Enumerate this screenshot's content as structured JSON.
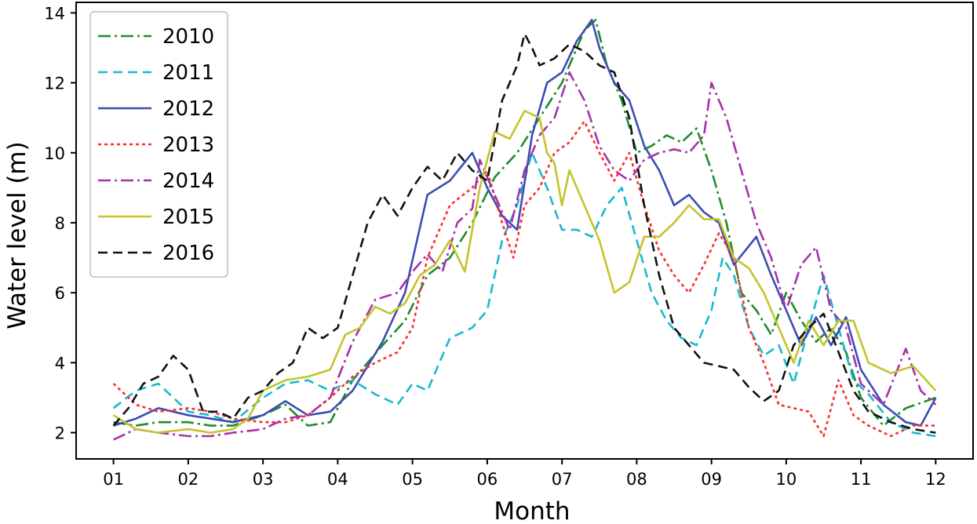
{
  "chart_data": {
    "type": "line",
    "title": "",
    "xlabel": "Month",
    "ylabel": "Water level (m)",
    "xlim": [
      0.5,
      12.5
    ],
    "ylim": [
      1.25,
      14.3
    ],
    "x_ticks": [
      1,
      2,
      3,
      4,
      5,
      6,
      7,
      8,
      9,
      10,
      11,
      12
    ],
    "x_tick_labels": [
      "01",
      "02",
      "03",
      "04",
      "05",
      "06",
      "07",
      "08",
      "09",
      "10",
      "11",
      "12"
    ],
    "y_ticks": [
      2,
      4,
      6,
      8,
      10,
      12,
      14
    ],
    "y_tick_labels": [
      "2",
      "4",
      "6",
      "8",
      "10",
      "12",
      "14"
    ],
    "grid": false,
    "legend_position": "top-left",
    "series": [
      {
        "name": "2010",
        "color": "#1e8a2e",
        "dash": "16,5,3,5",
        "x": [
          1.0,
          1.3,
          1.6,
          2.0,
          2.3,
          2.6,
          3.0,
          3.3,
          3.6,
          3.9,
          4.2,
          4.6,
          4.9,
          5.2,
          5.5,
          5.8,
          6.1,
          6.4,
          6.7,
          7.0,
          7.3,
          7.45,
          7.6,
          7.8,
          8.0,
          8.2,
          8.4,
          8.6,
          8.8,
          9.0,
          9.2,
          9.4,
          9.6,
          9.8,
          10.0,
          10.2,
          10.4,
          10.6,
          10.8,
          11.0,
          11.3,
          11.6,
          12.0
        ],
        "y": [
          2.3,
          2.2,
          2.3,
          2.3,
          2.2,
          2.2,
          2.5,
          2.8,
          2.2,
          2.3,
          3.5,
          4.5,
          5.2,
          6.5,
          7.0,
          8.0,
          9.3,
          10.0,
          11.0,
          12.0,
          13.5,
          13.8,
          12.5,
          11.5,
          10.0,
          10.2,
          10.5,
          10.3,
          10.7,
          9.5,
          8.0,
          6.0,
          5.5,
          4.8,
          6.0,
          5.2,
          4.6,
          5.0,
          4.3,
          3.0,
          2.2,
          2.7,
          3.0
        ]
      },
      {
        "name": "2011",
        "color": "#1ab8cf",
        "dash": "12,7",
        "x": [
          1.0,
          1.3,
          1.6,
          2.0,
          2.3,
          2.6,
          3.0,
          3.3,
          3.6,
          3.9,
          4.2,
          4.5,
          4.8,
          5.0,
          5.2,
          5.5,
          5.8,
          6.0,
          6.2,
          6.4,
          6.6,
          6.8,
          7.0,
          7.2,
          7.4,
          7.6,
          7.8,
          8.0,
          8.2,
          8.4,
          8.6,
          8.8,
          9.0,
          9.15,
          9.3,
          9.5,
          9.7,
          9.9,
          10.1,
          10.3,
          10.5,
          10.7,
          10.9,
          11.1,
          11.4,
          11.7,
          12.0
        ],
        "y": [
          2.7,
          3.2,
          3.4,
          2.6,
          2.5,
          2.3,
          3.0,
          3.4,
          3.5,
          3.2,
          3.5,
          3.1,
          2.8,
          3.4,
          3.2,
          4.7,
          5.0,
          5.5,
          7.5,
          8.5,
          10.0,
          9.0,
          7.8,
          7.8,
          7.6,
          8.5,
          9.0,
          7.5,
          6.0,
          5.2,
          4.7,
          4.5,
          5.5,
          7.0,
          6.5,
          5.0,
          4.2,
          4.5,
          3.4,
          5.0,
          6.5,
          5.0,
          3.5,
          3.1,
          2.3,
          2.0,
          1.9
        ]
      },
      {
        "name": "2012",
        "color": "#3c4db2",
        "dash": "",
        "x": [
          1.0,
          1.3,
          1.6,
          2.0,
          2.3,
          2.6,
          3.0,
          3.3,
          3.6,
          3.9,
          4.2,
          4.6,
          4.9,
          5.2,
          5.5,
          5.8,
          6.0,
          6.2,
          6.4,
          6.6,
          6.8,
          7.0,
          7.2,
          7.4,
          7.5,
          7.7,
          7.9,
          8.1,
          8.3,
          8.5,
          8.7,
          8.9,
          9.1,
          9.3,
          9.6,
          9.8,
          10.0,
          10.2,
          10.4,
          10.6,
          10.8,
          11.0,
          11.3,
          11.6,
          11.8,
          12.0
        ],
        "y": [
          2.2,
          2.4,
          2.7,
          2.5,
          2.4,
          2.3,
          2.5,
          2.9,
          2.5,
          2.6,
          3.2,
          4.6,
          6.0,
          8.8,
          9.2,
          10.0,
          9.0,
          8.2,
          7.8,
          10.5,
          12.0,
          12.3,
          13.2,
          13.8,
          13.0,
          12.0,
          11.5,
          10.2,
          9.5,
          8.5,
          8.8,
          8.3,
          8.0,
          6.8,
          7.6,
          6.5,
          5.5,
          4.5,
          5.3,
          4.5,
          5.3,
          3.8,
          2.8,
          2.3,
          2.2,
          3.0
        ]
      },
      {
        "name": "2013",
        "color": "#ff2d2d",
        "dash": "4,4",
        "x": [
          1.0,
          1.3,
          1.6,
          2.0,
          2.3,
          2.6,
          3.0,
          3.3,
          3.6,
          3.9,
          4.2,
          4.5,
          4.8,
          5.0,
          5.2,
          5.5,
          5.8,
          6.0,
          6.2,
          6.35,
          6.5,
          6.7,
          6.9,
          7.1,
          7.3,
          7.5,
          7.7,
          7.9,
          8.1,
          8.3,
          8.5,
          8.7,
          8.9,
          9.1,
          9.3,
          9.5,
          9.7,
          9.9,
          10.1,
          10.3,
          10.5,
          10.7,
          10.9,
          11.1,
          11.4,
          11.7,
          12.0
        ],
        "y": [
          3.4,
          2.8,
          2.6,
          2.7,
          2.6,
          2.4,
          2.3,
          2.3,
          2.5,
          3.0,
          3.6,
          4.0,
          4.3,
          5.0,
          7.0,
          8.5,
          9.0,
          9.5,
          8.0,
          7.0,
          8.5,
          9.0,
          10.0,
          10.3,
          10.9,
          10.0,
          9.2,
          10.0,
          8.5,
          7.2,
          6.5,
          6.0,
          6.8,
          7.7,
          7.0,
          5.0,
          4.0,
          2.8,
          2.7,
          2.6,
          1.9,
          3.5,
          2.5,
          2.2,
          1.9,
          2.2,
          2.2
        ]
      },
      {
        "name": "2014",
        "color": "#a632a8",
        "dash": "16,5,3,5",
        "x": [
          1.0,
          1.3,
          1.6,
          2.0,
          2.3,
          2.6,
          3.0,
          3.3,
          3.6,
          3.9,
          4.2,
          4.5,
          4.8,
          5.0,
          5.2,
          5.4,
          5.6,
          5.8,
          5.9,
          6.1,
          6.3,
          6.5,
          6.7,
          6.9,
          7.1,
          7.3,
          7.5,
          7.7,
          7.9,
          8.1,
          8.3,
          8.5,
          8.7,
          8.9,
          9.0,
          9.2,
          9.4,
          9.6,
          9.8,
          10.0,
          10.2,
          10.4,
          10.6,
          10.8,
          11.0,
          11.3,
          11.6,
          11.8,
          12.0
        ],
        "y": [
          1.8,
          2.1,
          2.0,
          1.9,
          1.9,
          2.0,
          2.1,
          2.4,
          2.5,
          3.0,
          4.6,
          5.8,
          6.0,
          6.6,
          7.1,
          6.6,
          8.0,
          8.4,
          9.8,
          8.8,
          7.8,
          9.5,
          10.5,
          11.0,
          12.3,
          11.5,
          10.2,
          9.5,
          9.2,
          9.8,
          10.0,
          10.1,
          10.0,
          10.5,
          12.0,
          11.0,
          9.5,
          8.0,
          7.0,
          5.5,
          6.8,
          7.3,
          5.5,
          5.0,
          3.4,
          2.8,
          4.4,
          3.2,
          2.8
        ]
      },
      {
        "name": "2015",
        "color": "#c4c42c",
        "dash": "",
        "x": [
          1.0,
          1.3,
          1.6,
          2.0,
          2.3,
          2.6,
          2.8,
          3.0,
          3.3,
          3.6,
          3.9,
          4.1,
          4.3,
          4.5,
          4.7,
          4.9,
          5.1,
          5.3,
          5.5,
          5.7,
          5.9,
          6.1,
          6.3,
          6.5,
          6.7,
          6.8,
          6.9,
          7.0,
          7.1,
          7.3,
          7.5,
          7.7,
          7.9,
          8.1,
          8.3,
          8.5,
          8.7,
          8.9,
          9.1,
          9.3,
          9.5,
          9.7,
          9.9,
          10.1,
          10.3,
          10.5,
          10.7,
          10.9,
          11.1,
          11.4,
          11.7,
          12.0
        ],
        "y": [
          2.5,
          2.1,
          2.0,
          2.1,
          2.0,
          2.1,
          2.4,
          3.2,
          3.5,
          3.6,
          3.8,
          4.8,
          5.0,
          5.6,
          5.4,
          5.7,
          6.5,
          6.8,
          7.5,
          6.6,
          9.0,
          10.6,
          10.4,
          11.2,
          11.0,
          10.0,
          9.7,
          8.5,
          9.5,
          8.5,
          7.5,
          6.0,
          6.3,
          7.6,
          7.6,
          8.0,
          8.5,
          8.1,
          8.1,
          7.0,
          6.7,
          6.0,
          5.0,
          4.0,
          5.2,
          4.5,
          5.2,
          5.2,
          4.0,
          3.7,
          3.9,
          3.2
        ]
      },
      {
        "name": "2016",
        "color": "#111111",
        "dash": "12,7",
        "x": [
          1.0,
          1.2,
          1.4,
          1.6,
          1.8,
          2.0,
          2.2,
          2.4,
          2.6,
          2.8,
          3.0,
          3.2,
          3.4,
          3.6,
          3.8,
          4.0,
          4.2,
          4.4,
          4.6,
          4.8,
          5.0,
          5.2,
          5.4,
          5.6,
          5.8,
          6.0,
          6.2,
          6.4,
          6.5,
          6.6,
          6.7,
          6.9,
          7.1,
          7.3,
          7.5,
          7.7,
          7.9,
          8.1,
          8.3,
          8.5,
          8.7,
          8.9,
          9.1,
          9.3,
          9.5,
          9.7,
          9.9,
          10.1,
          10.3,
          10.5,
          10.7,
          10.9,
          11.1,
          11.4,
          11.7,
          12.0
        ],
        "y": [
          2.2,
          2.7,
          3.4,
          3.6,
          4.2,
          3.8,
          2.6,
          2.6,
          2.4,
          3.0,
          3.2,
          3.7,
          4.0,
          5.0,
          4.7,
          5.0,
          6.5,
          8.0,
          8.8,
          8.2,
          9.0,
          9.6,
          9.2,
          10.0,
          9.5,
          9.2,
          11.5,
          12.5,
          13.4,
          13.0,
          12.5,
          12.7,
          13.1,
          12.9,
          12.5,
          12.3,
          11.0,
          8.5,
          6.5,
          5.0,
          4.5,
          4.0,
          3.9,
          3.8,
          3.3,
          2.9,
          3.2,
          4.5,
          5.0,
          5.4,
          4.3,
          3.2,
          2.6,
          2.3,
          2.1,
          2.0
        ]
      }
    ]
  }
}
